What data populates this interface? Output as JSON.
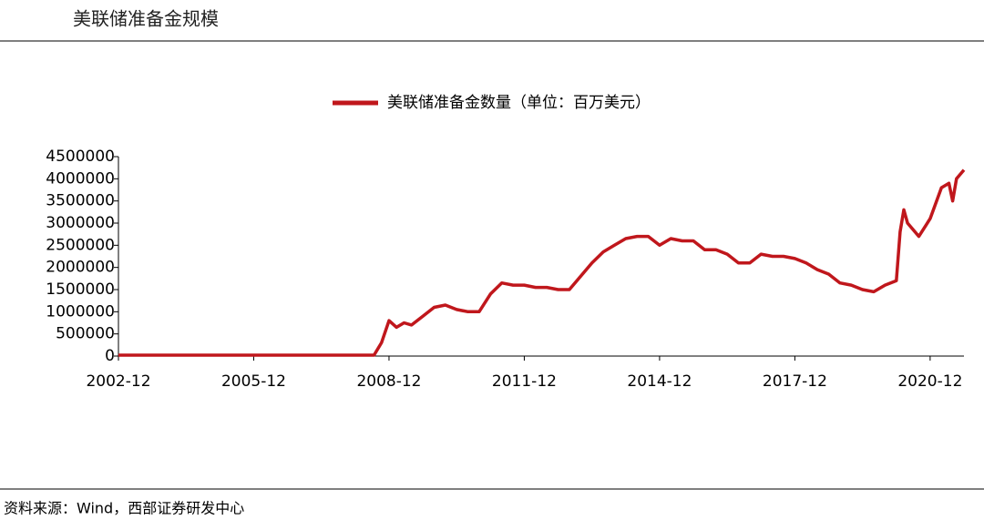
{
  "title": "美联储准备金规模",
  "source": "资料来源：Wind，西部证券研发中心",
  "chart_data": {
    "type": "line",
    "x": [
      "2002-12",
      "2008-08",
      "2008-10",
      "2008-12",
      "2009-02",
      "2009-04",
      "2009-06",
      "2009-09",
      "2009-12",
      "2010-03",
      "2010-06",
      "2010-09",
      "2010-12",
      "2011-03",
      "2011-06",
      "2011-09",
      "2011-12",
      "2012-03",
      "2012-06",
      "2012-09",
      "2012-12",
      "2013-03",
      "2013-06",
      "2013-09",
      "2013-12",
      "2014-03",
      "2014-06",
      "2014-09",
      "2014-12",
      "2015-03",
      "2015-06",
      "2015-09",
      "2015-12",
      "2016-03",
      "2016-06",
      "2016-09",
      "2016-12",
      "2017-03",
      "2017-06",
      "2017-09",
      "2017-12",
      "2018-03",
      "2018-06",
      "2018-09",
      "2018-12",
      "2019-03",
      "2019-06",
      "2019-09",
      "2019-12",
      "2020-03",
      "2020-04",
      "2020-05",
      "2020-06",
      "2020-09",
      "2020-12",
      "2021-03",
      "2021-05",
      "2021-06",
      "2021-07",
      "2021-09"
    ],
    "series": [
      {
        "name": "美联储准备金数量（单位：百万美元）",
        "color": "#c0171c",
        "values": [
          20000,
          20000,
          300000,
          800000,
          650000,
          750000,
          700000,
          900000,
          1100000,
          1150000,
          1050000,
          1000000,
          1000000,
          1400000,
          1650000,
          1600000,
          1600000,
          1550000,
          1550000,
          1500000,
          1500000,
          1800000,
          2100000,
          2350000,
          2500000,
          2650000,
          2700000,
          2700000,
          2500000,
          2650000,
          2600000,
          2600000,
          2400000,
          2400000,
          2300000,
          2100000,
          2100000,
          2300000,
          2250000,
          2250000,
          2200000,
          2100000,
          1950000,
          1850000,
          1650000,
          1600000,
          1500000,
          1450000,
          1600000,
          1700000,
          2800000,
          3300000,
          3000000,
          2700000,
          3100000,
          3800000,
          3900000,
          3500000,
          4000000,
          4200000
        ]
      }
    ],
    "xlim": [
      "2002-12",
      "2021-09"
    ],
    "xticks": [
      "2002-12",
      "2005-12",
      "2008-12",
      "2011-12",
      "2014-12",
      "2017-12",
      "2020-12"
    ],
    "ylim": [
      0,
      4500000
    ],
    "yticks": [
      0,
      500000,
      1000000,
      1500000,
      2000000,
      2500000,
      3000000,
      3500000,
      4000000,
      4500000
    ],
    "legend": "top"
  }
}
